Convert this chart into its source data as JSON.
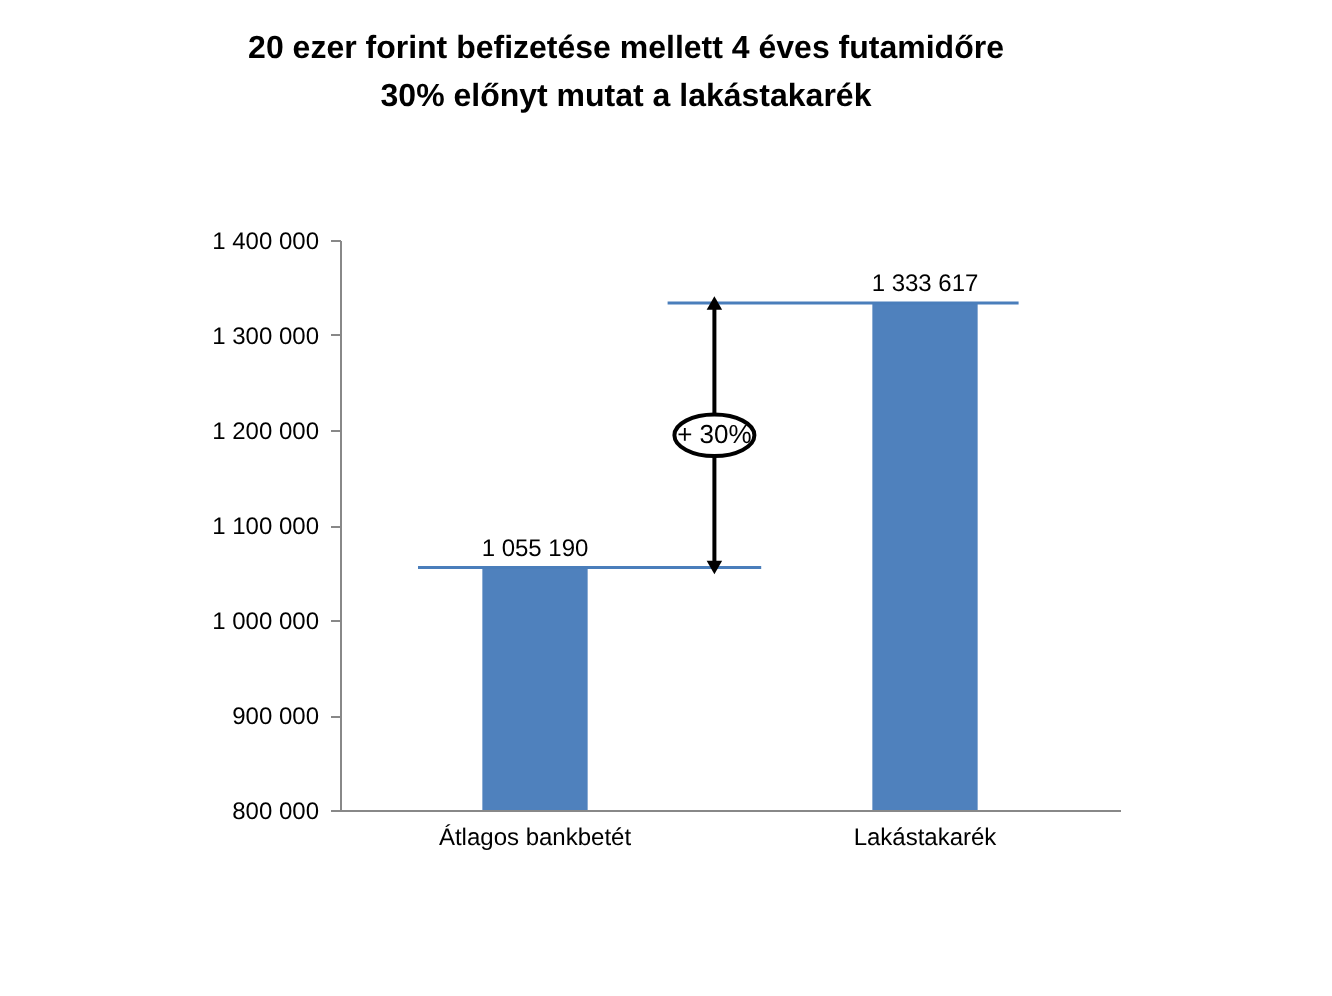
{
  "chart_data": {
    "type": "bar",
    "title": [
      "20 ezer forint befizetése mellett 4 éves futamidőre",
      "30% előnyt mutat a lakástakarék"
    ],
    "categories": [
      "Átlagos bankbetét",
      "Lakástakarék"
    ],
    "values": [
      1055190,
      1333617
    ],
    "color": "#4f81bd",
    "value_labels": [
      "1 055 190",
      "1 333 617"
    ],
    "ylim": [
      800000,
      1400000
    ],
    "yticks": [
      {
        "value": 800000,
        "label": "800 000"
      },
      {
        "value": 900000,
        "label": "900 000"
      },
      {
        "value": 1000000,
        "label": "1 000 000"
      },
      {
        "value": 1100000,
        "label": "1 100 000"
      },
      {
        "value": 1200000,
        "label": "1 200 000"
      },
      {
        "value": 1300000,
        "label": "1 300 000"
      },
      {
        "value": 1400000,
        "label": "1 400 000"
      }
    ],
    "ref_lines": [
      {
        "axis": "y",
        "value": 1055190,
        "color": "#4a7ebb"
      },
      {
        "axis": "y",
        "value": 1333617,
        "color": "#4a7ebb"
      }
    ],
    "annotations": [
      "+ 30%"
    ],
    "grid": false
  }
}
